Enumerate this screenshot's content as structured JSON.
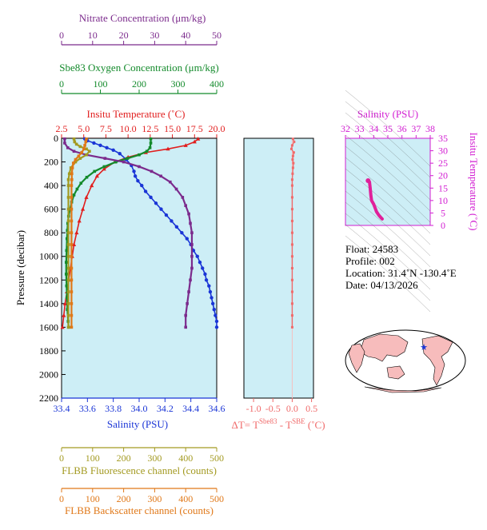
{
  "colors": {
    "nitrate": "#7b2a8c",
    "oxygen": "#138a2b",
    "temperature": "#e11e1e",
    "salinity": "#1a35d6",
    "fluorescence": "#a39a21",
    "backscatter": "#e07818",
    "ts_axis": "#d21ed2",
    "panel_bg": "#cdeef6",
    "delta_t": "#f06a6a"
  },
  "chart_data": [
    {
      "type": "line",
      "ylabel": "Pressure (decibar)",
      "yticks": [
        0,
        200,
        400,
        600,
        800,
        1000,
        1200,
        1400,
        1600,
        1800,
        2000,
        2200
      ],
      "ylim": [
        0,
        2200
      ],
      "axes": {
        "nitrate": {
          "label": "Nitrate Concentration (μm/kg)",
          "ticks": [
            0,
            10,
            20,
            30,
            40,
            50
          ],
          "range": [
            0,
            50
          ]
        },
        "oxygen": {
          "label": "Sbe83 Oxygen Concentration (μm/kg)",
          "ticks": [
            0,
            100,
            200,
            300,
            400
          ],
          "range": [
            0,
            400
          ]
        },
        "temperature": {
          "label": "Insitu Temperature (˚C)",
          "ticks": [
            "2.5",
            "5.0",
            "7.5",
            "10.0",
            "12.5",
            "15.0",
            "17.5",
            "20.0"
          ],
          "range": [
            2.5,
            20.0
          ]
        },
        "salinity": {
          "label": "Salinity (PSU)",
          "ticks": [
            "33.4",
            "33.6",
            "33.8",
            "34.0",
            "34.2",
            "34.4",
            "34.6"
          ],
          "range": [
            33.4,
            34.6
          ]
        },
        "fluorescence": {
          "label": "FLBB Fluorescence channel (counts)",
          "ticks": [
            0,
            100,
            200,
            300,
            400,
            500
          ],
          "range": [
            0,
            500
          ]
        },
        "backscatter": {
          "label": "FLBB Backscatter channel (counts)",
          "ticks": [
            0,
            100,
            200,
            300,
            400,
            500
          ],
          "range": [
            0,
            500
          ]
        }
      },
      "series": [
        {
          "key": "temperature",
          "points": [
            [
              17.9,
              5
            ],
            [
              17.5,
              30
            ],
            [
              16.5,
              60
            ],
            [
              14.5,
              90
            ],
            [
              12.0,
              120
            ],
            [
              10.0,
              160
            ],
            [
              8.5,
              200
            ],
            [
              7.3,
              260
            ],
            [
              6.5,
              320
            ],
            [
              5.9,
              400
            ],
            [
              5.3,
              500
            ],
            [
              4.9,
              600
            ],
            [
              4.5,
              700
            ],
            [
              4.2,
              800
            ],
            [
              3.9,
              900
            ],
            [
              3.7,
              1000
            ],
            [
              3.5,
              1100
            ],
            [
              3.3,
              1200
            ],
            [
              3.1,
              1300
            ],
            [
              2.9,
              1400
            ],
            [
              2.75,
              1500
            ],
            [
              2.6,
              1600
            ]
          ]
        },
        {
          "key": "salinity",
          "points": [
            [
              33.58,
              5
            ],
            [
              33.6,
              20
            ],
            [
              33.65,
              40
            ],
            [
              33.7,
              60
            ],
            [
              33.75,
              80
            ],
            [
              33.8,
              100
            ],
            [
              33.85,
              130
            ],
            [
              33.9,
              180
            ],
            [
              33.94,
              230
            ],
            [
              33.96,
              280
            ],
            [
              33.97,
              320
            ],
            [
              33.99,
              360
            ],
            [
              34.02,
              400
            ],
            [
              34.05,
              450
            ],
            [
              34.09,
              500
            ],
            [
              34.13,
              550
            ],
            [
              34.17,
              600
            ],
            [
              34.21,
              650
            ],
            [
              34.25,
              700
            ],
            [
              34.29,
              750
            ],
            [
              34.33,
              800
            ],
            [
              34.37,
              850
            ],
            [
              34.4,
              900
            ],
            [
              34.42,
              950
            ],
            [
              34.45,
              1000
            ],
            [
              34.47,
              1050
            ],
            [
              34.49,
              1100
            ],
            [
              34.51,
              1150
            ],
            [
              34.52,
              1200
            ],
            [
              34.54,
              1250
            ],
            [
              34.55,
              1300
            ],
            [
              34.56,
              1350
            ],
            [
              34.57,
              1400
            ],
            [
              34.58,
              1450
            ],
            [
              34.59,
              1500
            ],
            [
              34.6,
              1550
            ],
            [
              34.6,
              1600
            ]
          ]
        },
        {
          "key": "oxygen",
          "points": [
            [
              230,
              5
            ],
            [
              230,
              40
            ],
            [
              228,
              80
            ],
            [
              220,
              110
            ],
            [
              200,
              140
            ],
            [
              170,
              170
            ],
            [
              140,
              200
            ],
            [
              110,
              240
            ],
            [
              85,
              280
            ],
            [
              65,
              330
            ],
            [
              50,
              380
            ],
            [
              40,
              430
            ],
            [
              32,
              480
            ],
            [
              26,
              540
            ],
            [
              22,
              600
            ],
            [
              18,
              660
            ],
            [
              16,
              720
            ],
            [
              15,
              780
            ],
            [
              14,
              850
            ],
            [
              13,
              950
            ],
            [
              12,
              1050
            ],
            [
              12,
              1150
            ],
            [
              13,
              1250
            ],
            [
              14,
              1350
            ],
            [
              15,
              1450
            ],
            [
              17,
              1550
            ],
            [
              18,
              1600
            ]
          ]
        },
        {
          "key": "nitrate",
          "points": [
            [
              1,
              5
            ],
            [
              1,
              40
            ],
            [
              2,
              80
            ],
            [
              4,
              110
            ],
            [
              8,
              140
            ],
            [
              14,
              170
            ],
            [
              20,
              200
            ],
            [
              25,
              240
            ],
            [
              29,
              280
            ],
            [
              32,
              320
            ],
            [
              35,
              370
            ],
            [
              37,
              430
            ],
            [
              39,
              500
            ],
            [
              40,
              570
            ],
            [
              41,
              640
            ],
            [
              41.5,
              720
            ],
            [
              42,
              800
            ],
            [
              42,
              900
            ],
            [
              42,
              1000
            ],
            [
              42,
              1100
            ],
            [
              41.5,
              1200
            ],
            [
              41,
              1300
            ],
            [
              40.5,
              1400
            ],
            [
              40,
              1500
            ],
            [
              40,
              1600
            ]
          ]
        },
        {
          "key": "fluorescence",
          "points": [
            [
              40,
              5
            ],
            [
              42,
              30
            ],
            [
              48,
              50
            ],
            [
              60,
              70
            ],
            [
              80,
              90
            ],
            [
              90,
              110
            ],
            [
              80,
              140
            ],
            [
              60,
              170
            ],
            [
              45,
              200
            ],
            [
              30,
              250
            ],
            [
              25,
              300
            ],
            [
              22,
              350
            ],
            [
              22,
              400
            ],
            [
              22,
              500
            ],
            [
              22,
              600
            ],
            [
              22,
              700
            ],
            [
              22,
              800
            ],
            [
              22,
              900
            ],
            [
              22,
              1000
            ],
            [
              22,
              1100
            ],
            [
              22,
              1200
            ],
            [
              22,
              1300
            ],
            [
              22,
              1400
            ],
            [
              22,
              1500
            ],
            [
              22,
              1600
            ]
          ]
        },
        {
          "key": "backscatter",
          "points": [
            [
              80,
              5
            ],
            [
              78,
              30
            ],
            [
              75,
              60
            ],
            [
              72,
              90
            ],
            [
              65,
              120
            ],
            [
              55,
              150
            ],
            [
              45,
              180
            ],
            [
              38,
              210
            ],
            [
              35,
              250
            ],
            [
              33,
              300
            ],
            [
              33,
              350
            ],
            [
              32,
              400
            ],
            [
              32,
              500
            ],
            [
              32,
              600
            ],
            [
              32,
              700
            ],
            [
              32,
              800
            ],
            [
              32,
              900
            ],
            [
              32,
              1000
            ],
            [
              32,
              1100
            ],
            [
              32,
              1200
            ],
            [
              32,
              1300
            ],
            [
              32,
              1400
            ],
            [
              32,
              1500
            ],
            [
              32,
              1600
            ]
          ]
        }
      ]
    },
    {
      "type": "line",
      "xlabel": "ΔT= Tˢᵇᵉ⁸³ - Tˢᴮᴱ (˚C)",
      "xlabel_main": "ΔT= T",
      "xlabel_sup1": "Sbe83",
      "xlabel_mid": " - T",
      "xlabel_sup2": "SBE",
      "xlabel_end": " (˚C)",
      "xticks": [
        "-1.0",
        "-0.5",
        "0.0",
        "0.5"
      ],
      "xlim": [
        -1.25,
        0.55
      ],
      "ylim": [
        0,
        2200
      ],
      "series": [
        {
          "name": "delta_t",
          "points": [
            [
              0.02,
              5
            ],
            [
              0.05,
              30
            ],
            [
              0.0,
              60
            ],
            [
              -0.02,
              90
            ],
            [
              0.04,
              120
            ],
            [
              0.02,
              150
            ],
            [
              0.01,
              180
            ],
            [
              0.03,
              210
            ],
            [
              0.02,
              250
            ],
            [
              0.01,
              300
            ],
            [
              0.0,
              350
            ],
            [
              0.0,
              400
            ],
            [
              0.0,
              500
            ],
            [
              0.0,
              600
            ],
            [
              0.0,
              700
            ],
            [
              0.0,
              800
            ],
            [
              0.0,
              900
            ],
            [
              0.0,
              1000
            ],
            [
              0.0,
              1100
            ],
            [
              0.0,
              1200
            ],
            [
              0.0,
              1300
            ],
            [
              0.0,
              1400
            ],
            [
              0.0,
              1500
            ],
            [
              0.0,
              1600
            ]
          ]
        }
      ]
    },
    {
      "type": "line",
      "title": "Salinity (PSU)",
      "ylabel": "Insitu Temperature (˚C)",
      "xticks": [
        32,
        33,
        34,
        35,
        36,
        37,
        38
      ],
      "yticks": [
        0,
        5,
        10,
        15,
        20,
        25,
        30,
        35
      ],
      "xlim": [
        32,
        38
      ],
      "ylim": [
        0,
        35
      ],
      "series": [
        {
          "name": "ts",
          "points": [
            [
              33.6,
              18
            ],
            [
              33.7,
              17.5
            ],
            [
              33.75,
              15
            ],
            [
              33.8,
              12
            ],
            [
              33.85,
              10
            ],
            [
              34.0,
              8.5
            ],
            [
              34.1,
              7
            ],
            [
              34.2,
              5.5
            ],
            [
              34.35,
              4.2
            ],
            [
              34.5,
              3.2
            ],
            [
              34.6,
              2.6
            ]
          ]
        }
      ]
    }
  ],
  "info": {
    "float": "Float:  24583",
    "profile": "Profile:  002",
    "location": "Location:  31.4˚N  -130.4˚E",
    "date": "Date:  04/13/2026"
  },
  "map": {
    "marker_symbol": "★"
  }
}
